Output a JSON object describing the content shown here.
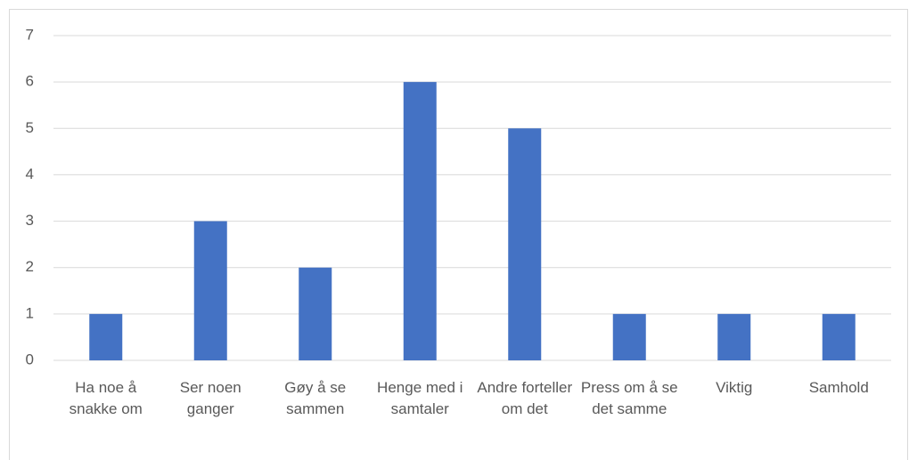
{
  "chart_data": {
    "type": "bar",
    "categories": [
      "Ha noe å snakke om",
      "Ser noen ganger",
      "Gøy å se sammen",
      "Henge med i samtaler",
      "Andre forteller om det",
      "Press om å se det samme",
      "Viktig",
      "Samhold"
    ],
    "values": [
      1,
      3,
      2,
      6,
      5,
      1,
      1,
      1
    ],
    "color": "#4472c4",
    "ylim": [
      0,
      7
    ],
    "yticks": [
      0,
      1,
      2,
      3,
      4,
      5,
      6,
      7
    ],
    "grid": true
  }
}
